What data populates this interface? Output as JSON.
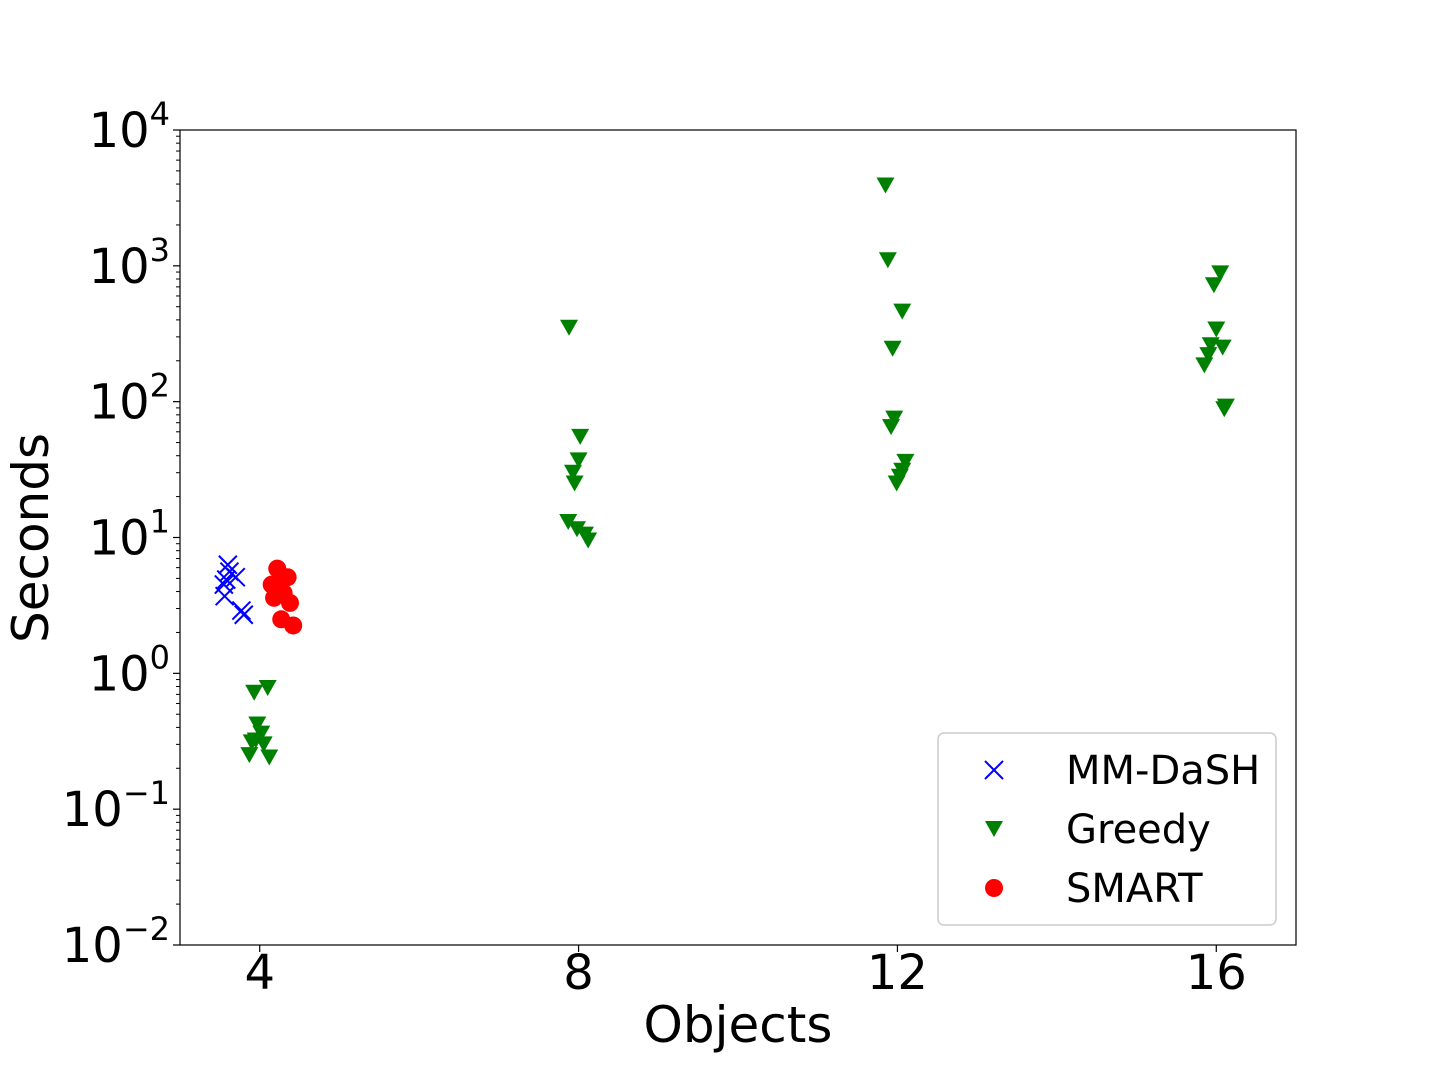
{
  "chart_data": {
    "type": "scatter",
    "xlabel": "Objects",
    "ylabel": "Seconds",
    "yscale": "log",
    "ylim": [
      0.01,
      10000
    ],
    "xlim": [
      3,
      17
    ],
    "x_ticks": [
      {
        "value": 4,
        "label": "4"
      },
      {
        "value": 8,
        "label": "8"
      },
      {
        "value": 12,
        "label": "12"
      },
      {
        "value": 16,
        "label": "16"
      }
    ],
    "y_ticks": [
      {
        "value": 0.01,
        "base": "10",
        "exp": "−2"
      },
      {
        "value": 0.1,
        "base": "10",
        "exp": "−1"
      },
      {
        "value": 1,
        "base": "10",
        "exp": "0"
      },
      {
        "value": 10,
        "base": "10",
        "exp": "1"
      },
      {
        "value": 100,
        "base": "10",
        "exp": "2"
      },
      {
        "value": 1000,
        "base": "10",
        "exp": "3"
      },
      {
        "value": 10000,
        "base": "10",
        "exp": "4"
      }
    ],
    "grid": false,
    "legend_position": "bottom-right",
    "series": [
      {
        "name": "MM-DaSH",
        "marker": "x",
        "color": "#0000ff",
        "points": [
          {
            "x": 3.6,
            "y": 6.3
          },
          {
            "x": 3.62,
            "y": 5.6
          },
          {
            "x": 3.58,
            "y": 4.9
          },
          {
            "x": 3.7,
            "y": 5.1
          },
          {
            "x": 3.55,
            "y": 4.5
          },
          {
            "x": 3.56,
            "y": 3.7
          },
          {
            "x": 3.77,
            "y": 2.9
          },
          {
            "x": 3.8,
            "y": 2.7
          }
        ]
      },
      {
        "name": "Greedy",
        "marker": "triangle-down",
        "color": "#008000",
        "points": [
          {
            "x": 4.1,
            "y": 0.78
          },
          {
            "x": 3.93,
            "y": 0.72
          },
          {
            "x": 3.97,
            "y": 0.42
          },
          {
            "x": 4.02,
            "y": 0.36
          },
          {
            "x": 3.95,
            "y": 0.32
          },
          {
            "x": 3.9,
            "y": 0.31
          },
          {
            "x": 4.05,
            "y": 0.3
          },
          {
            "x": 3.87,
            "y": 0.25
          },
          {
            "x": 4.12,
            "y": 0.24
          },
          {
            "x": 7.88,
            "y": 350
          },
          {
            "x": 8.02,
            "y": 55
          },
          {
            "x": 8.0,
            "y": 37
          },
          {
            "x": 7.93,
            "y": 30
          },
          {
            "x": 7.95,
            "y": 25
          },
          {
            "x": 7.87,
            "y": 13
          },
          {
            "x": 7.98,
            "y": 11.5
          },
          {
            "x": 8.08,
            "y": 10.5
          },
          {
            "x": 8.12,
            "y": 9.5
          },
          {
            "x": 11.85,
            "y": 3900
          },
          {
            "x": 11.88,
            "y": 1100
          },
          {
            "x": 12.06,
            "y": 460
          },
          {
            "x": 11.94,
            "y": 245
          },
          {
            "x": 11.96,
            "y": 75
          },
          {
            "x": 11.92,
            "y": 65
          },
          {
            "x": 12.1,
            "y": 36
          },
          {
            "x": 12.06,
            "y": 31
          },
          {
            "x": 12.03,
            "y": 28
          },
          {
            "x": 11.99,
            "y": 25
          },
          {
            "x": 16.05,
            "y": 880
          },
          {
            "x": 15.97,
            "y": 720
          },
          {
            "x": 16.0,
            "y": 340
          },
          {
            "x": 15.93,
            "y": 260
          },
          {
            "x": 16.08,
            "y": 250
          },
          {
            "x": 15.9,
            "y": 220
          },
          {
            "x": 15.85,
            "y": 185
          },
          {
            "x": 16.12,
            "y": 92
          },
          {
            "x": 16.1,
            "y": 88
          }
        ]
      },
      {
        "name": "SMART",
        "marker": "circle",
        "color": "#ff0000",
        "points": [
          {
            "x": 4.22,
            "y": 5.9
          },
          {
            "x": 4.35,
            "y": 5.1
          },
          {
            "x": 4.28,
            "y": 4.8
          },
          {
            "x": 4.15,
            "y": 4.5
          },
          {
            "x": 4.3,
            "y": 3.9
          },
          {
            "x": 4.18,
            "y": 3.6
          },
          {
            "x": 4.38,
            "y": 3.3
          },
          {
            "x": 4.27,
            "y": 2.5
          },
          {
            "x": 4.42,
            "y": 2.25
          }
        ]
      }
    ]
  }
}
